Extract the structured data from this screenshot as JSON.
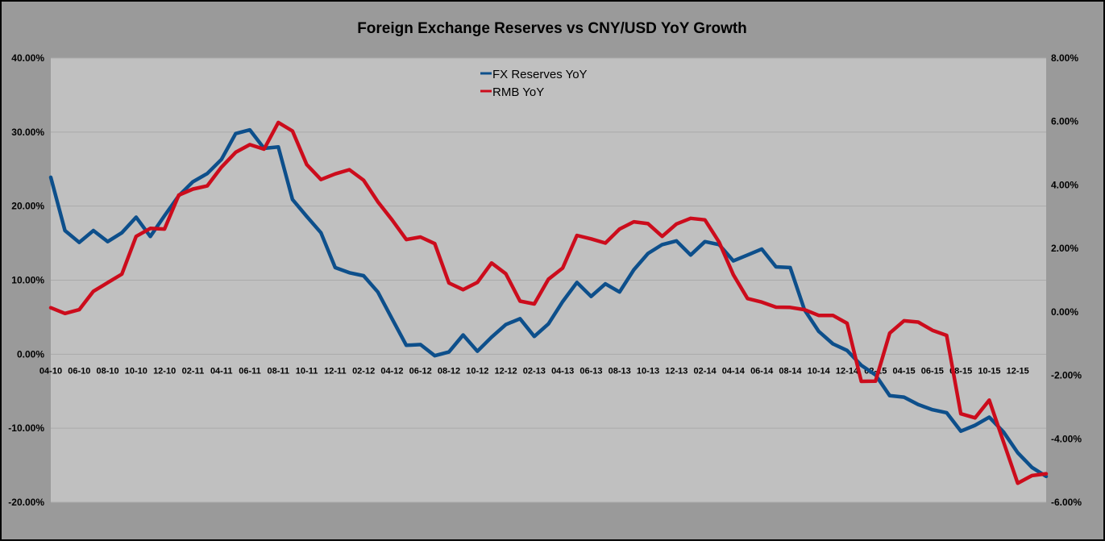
{
  "chart_data": {
    "type": "line",
    "title": "Foreign Exchange Reserves vs CNY/USD YoY Growth",
    "xlabel": "",
    "ylabel": "",
    "y2label": "",
    "x": [
      "04-10",
      "05-10",
      "06-10",
      "07-10",
      "08-10",
      "09-10",
      "10-10",
      "11-10",
      "12-10",
      "01-11",
      "02-11",
      "03-11",
      "04-11",
      "05-11",
      "06-11",
      "07-11",
      "08-11",
      "09-11",
      "10-11",
      "11-11",
      "12-11",
      "01-12",
      "02-12",
      "03-12",
      "04-12",
      "05-12",
      "06-12",
      "07-12",
      "08-12",
      "09-12",
      "10-12",
      "11-12",
      "12-12",
      "01-13",
      "02-13",
      "03-13",
      "04-13",
      "05-13",
      "06-13",
      "07-13",
      "08-13",
      "09-13",
      "10-13",
      "11-13",
      "12-13",
      "01-14",
      "02-14",
      "03-14",
      "04-14",
      "05-14",
      "06-14",
      "07-14",
      "08-14",
      "09-14",
      "10-14",
      "11-14",
      "12-14",
      "01-15",
      "02-15",
      "03-15",
      "04-15",
      "05-15",
      "06-15",
      "07-15",
      "08-15",
      "09-15",
      "10-15",
      "11-15",
      "12-15",
      "01-16",
      "02-16"
    ],
    "x_tick_labels": [
      "04-10",
      "06-10",
      "08-10",
      "10-10",
      "12-10",
      "02-11",
      "04-11",
      "06-11",
      "08-11",
      "10-11",
      "12-11",
      "02-12",
      "04-12",
      "06-12",
      "08-12",
      "10-12",
      "12-12",
      "02-13",
      "04-13",
      "06-13",
      "08-13",
      "10-13",
      "12-13",
      "02-14",
      "04-14",
      "06-14",
      "08-14",
      "10-14",
      "12-14",
      "02-15",
      "04-15",
      "06-15",
      "08-15",
      "10-15",
      "12-15"
    ],
    "y_left": {
      "ticks": [
        "40.00%",
        "30.00%",
        "20.00%",
        "10.00%",
        "0.00%",
        "-10.00%",
        "-20.00%"
      ],
      "min": -20,
      "max": 40
    },
    "y_right": {
      "ticks": [
        "8.00%",
        "6.00%",
        "4.00%",
        "2.00%",
        "0.00%",
        "-2.00%",
        "-4.00%",
        "-6.00%"
      ],
      "min": -6,
      "max": 8
    },
    "grid": true,
    "legend_position": "top-center",
    "series": [
      {
        "name": "FX Reserves YoY",
        "axis": "left",
        "color": "#0d4f8b",
        "values": [
          23.9,
          16.7,
          15.1,
          16.7,
          15.2,
          16.4,
          18.5,
          15.9,
          18.7,
          21.4,
          23.3,
          24.4,
          26.3,
          29.8,
          30.3,
          27.8,
          28.0,
          20.9,
          18.6,
          16.4,
          11.7,
          11.0,
          10.6,
          8.4,
          4.8,
          1.2,
          1.3,
          -0.2,
          0.3,
          2.6,
          0.4,
          2.3,
          4.0,
          4.8,
          2.4,
          4.1,
          7.1,
          9.7,
          7.8,
          9.5,
          8.4,
          11.4,
          13.6,
          14.8,
          15.3,
          13.4,
          15.2,
          14.8,
          12.6,
          13.4,
          14.2,
          11.8,
          11.7,
          6.0,
          3.1,
          1.4,
          0.5,
          -1.5,
          -2.8,
          -5.6,
          -5.8,
          -6.8,
          -7.5,
          -7.9,
          -10.4,
          -9.6,
          -8.5,
          -10.5,
          -13.3,
          -15.3,
          -16.5
        ]
      },
      {
        "name": "RMB YoY",
        "axis": "right",
        "color": "#cc0c1c",
        "values": [
          0.13,
          -0.05,
          0.07,
          0.65,
          0.92,
          1.19,
          2.38,
          2.63,
          2.61,
          3.68,
          3.87,
          3.97,
          4.56,
          5.03,
          5.27,
          5.13,
          5.97,
          5.7,
          4.64,
          4.17,
          4.35,
          4.48,
          4.15,
          3.47,
          2.9,
          2.28,
          2.36,
          2.15,
          0.91,
          0.7,
          0.93,
          1.54,
          1.2,
          0.34,
          0.25,
          1.03,
          1.38,
          2.41,
          2.3,
          2.17,
          2.61,
          2.84,
          2.78,
          2.38,
          2.77,
          2.95,
          2.9,
          2.2,
          1.17,
          0.42,
          0.31,
          0.15,
          0.14,
          0.07,
          -0.11,
          -0.11,
          -0.36,
          -2.19,
          -2.18,
          -0.67,
          -0.28,
          -0.32,
          -0.58,
          -0.74,
          -3.21,
          -3.34,
          -2.78,
          -4.1,
          -5.4,
          -5.16,
          -5.1
        ]
      }
    ]
  }
}
